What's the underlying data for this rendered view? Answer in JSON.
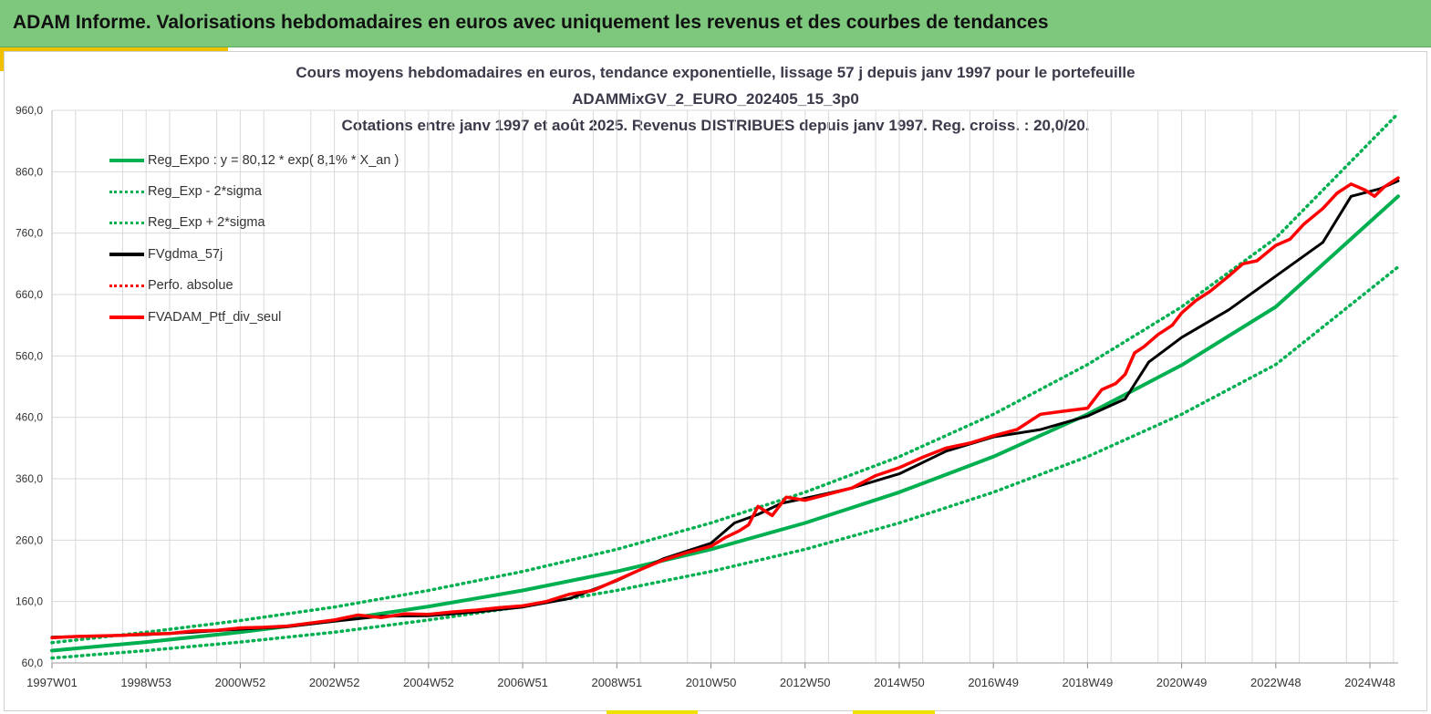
{
  "header": {
    "title": "ADAM Informe. Valorisations hebdomadaires en euros avec uniquement les revenus et des courbes de tendances"
  },
  "colors": {
    "banner": "#7dc87d",
    "trend_green": "#00b050",
    "smooth_black": "#000000",
    "portfolio_red": "#ff0000",
    "grid": "#d9d9d9"
  },
  "chart_data": {
    "type": "line",
    "title_lines": [
      "Cours moyens hebdomadaires  en euros, tendance exponentielle, lissage 57 j depuis janv 1997 pour le portefeuille",
      "ADAMMixGV_2_EURO_202405_15_3p0",
      "Cotations  entre janv 1997 et août 2025. Revenus DISTRIBUES depuis janv 1997. Reg. croiss. : 20,0/20."
    ],
    "xlabel": "",
    "ylabel": "",
    "ylim": [
      60,
      960
    ],
    "xlim": [
      1997.0,
      2025.6
    ],
    "y_ticks": [
      "60,0",
      "160,0",
      "260,0",
      "360,0",
      "460,0",
      "560,0",
      "660,0",
      "760,0",
      "860,0",
      "960,0"
    ],
    "x_tick_labels": [
      "1997W01",
      "1998W53",
      "2000W52",
      "2002W52",
      "2004W52",
      "2006W51",
      "2008W51",
      "2010W50",
      "2012W50",
      "2014W50",
      "2016W49",
      "2018W49",
      "2020W49",
      "2022W48",
      "2024W48"
    ],
    "x_tick_years": [
      1997.0,
      1999.0,
      2001.0,
      2003.0,
      2005.0,
      2007.0,
      2009.0,
      2011.0,
      2013.0,
      2015.0,
      2017.0,
      2019.0,
      2021.0,
      2023.0,
      2025.0
    ],
    "grid": true,
    "legend_position": "top-left",
    "legend": [
      {
        "label": "Reg_Expo : y = 80,12 * exp( 8,1% *  X_an )",
        "color": "#00b050",
        "style": "solid"
      },
      {
        "label": "Reg_Exp - 2*sigma",
        "color": "#00b050",
        "style": "dotted"
      },
      {
        "label": "Reg_Exp + 2*sigma",
        "color": "#00b050",
        "style": "dotted"
      },
      {
        "label": "FVgdma_57j",
        "color": "#000000",
        "style": "solid"
      },
      {
        "label": "Perfo. absolue",
        "color": "#ff0000",
        "style": "dotted"
      },
      {
        "label": "FVADAM_Ptf_div_seul",
        "color": "#ff0000",
        "style": "solid"
      }
    ],
    "series": [
      {
        "name": "Reg_Expo : y = 80,12 * exp( 8,1% *  X_an )",
        "x": [
          1997.0,
          1999.0,
          2001.0,
          2003.0,
          2005.0,
          2007.0,
          2009.0,
          2011.0,
          2013.0,
          2015.0,
          2017.0,
          2019.0,
          2021.0,
          2023.0,
          2025.6
        ],
        "y": [
          80,
          94,
          110,
          129,
          152,
          178,
          209,
          245,
          288,
          338,
          396,
          465,
          545,
          640,
          820
        ]
      },
      {
        "name": "Reg_Exp - 2*sigma",
        "x": [
          1997.0,
          1999.0,
          2001.0,
          2003.0,
          2005.0,
          2007.0,
          2009.0,
          2011.0,
          2013.0,
          2015.0,
          2017.0,
          2019.0,
          2021.0,
          2023.0,
          2025.6
        ],
        "y": [
          68,
          80,
          94,
          110,
          130,
          152,
          178,
          209,
          245,
          288,
          338,
          396,
          465,
          546,
          705
        ]
      },
      {
        "name": "Reg_Exp + 2*sigma",
        "x": [
          1997.0,
          1999.0,
          2001.0,
          2003.0,
          2005.0,
          2007.0,
          2009.0,
          2011.0,
          2013.0,
          2015.0,
          2017.0,
          2019.0,
          2021.0,
          2023.0,
          2025.6
        ],
        "y": [
          93,
          110,
          129,
          151,
          178,
          209,
          245,
          288,
          338,
          396,
          465,
          546,
          640,
          752,
          955
        ]
      },
      {
        "name": "FVgdma_57j",
        "x": [
          1997.0,
          1998.0,
          1999.0,
          2000.0,
          2001.0,
          2002.0,
          2003.0,
          2004.0,
          2005.0,
          2006.0,
          2007.0,
          2008.0,
          2009.0,
          2010.0,
          2011.0,
          2011.5,
          2012.0,
          2012.5,
          2013.0,
          2014.0,
          2015.0,
          2016.0,
          2017.0,
          2018.0,
          2019.0,
          2019.8,
          2020.3,
          2021.0,
          2022.0,
          2023.0,
          2024.0,
          2024.6,
          2025.2,
          2025.6
        ],
        "y": [
          102,
          104,
          106,
          110,
          115,
          119,
          128,
          136,
          137,
          143,
          151,
          165,
          194,
          230,
          255,
          288,
          302,
          320,
          328,
          345,
          368,
          405,
          428,
          440,
          462,
          490,
          550,
          590,
          635,
          690,
          745,
          820,
          832,
          845
        ]
      },
      {
        "name": "FVADAM_Ptf_div_seul",
        "x": [
          1997.0,
          1997.5,
          1998.0,
          1998.5,
          1999.0,
          1999.5,
          2000.0,
          2000.5,
          2001.0,
          2001.5,
          2002.0,
          2002.5,
          2003.0,
          2003.5,
          2004.0,
          2004.5,
          2005.0,
          2005.5,
          2006.0,
          2006.5,
          2007.0,
          2007.5,
          2008.0,
          2008.5,
          2009.0,
          2009.5,
          2010.0,
          2010.5,
          2011.0,
          2011.3,
          2011.6,
          2011.8,
          2012.0,
          2012.3,
          2012.6,
          2013.0,
          2013.5,
          2014.0,
          2014.5,
          2015.0,
          2015.5,
          2016.0,
          2016.5,
          2017.0,
          2017.5,
          2018.0,
          2018.5,
          2019.0,
          2019.3,
          2019.6,
          2019.8,
          2020.0,
          2020.2,
          2020.5,
          2020.8,
          2021.0,
          2021.3,
          2021.6,
          2022.0,
          2022.3,
          2022.6,
          2023.0,
          2023.3,
          2023.6,
          2024.0,
          2024.3,
          2024.6,
          2024.9,
          2025.1,
          2025.3,
          2025.6
        ],
        "y": [
          101,
          103,
          104,
          105,
          107,
          108,
          112,
          113,
          117,
          118,
          120,
          125,
          130,
          138,
          134,
          140,
          139,
          143,
          146,
          150,
          153,
          160,
          172,
          178,
          195,
          212,
          228,
          240,
          250,
          264,
          275,
          285,
          315,
          300,
          330,
          325,
          335,
          345,
          365,
          378,
          395,
          410,
          418,
          430,
          440,
          465,
          470,
          475,
          505,
          515,
          530,
          565,
          575,
          595,
          610,
          630,
          650,
          665,
          690,
          710,
          715,
          740,
          750,
          775,
          800,
          825,
          840,
          830,
          820,
          835,
          850
        ]
      }
    ]
  }
}
